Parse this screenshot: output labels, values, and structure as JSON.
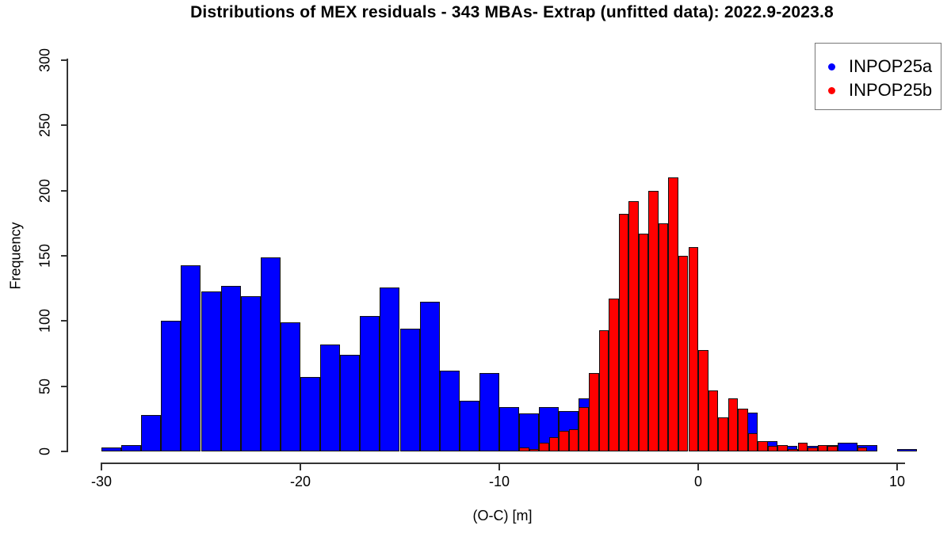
{
  "title": "Distributions of MEX residuals - 343 MBAs- Extrap (unfitted data): 2022.9-2023.8",
  "axes": {
    "x": {
      "label": "(O-C) [m]",
      "tick_values": [
        -30,
        -20,
        -10,
        0,
        10
      ],
      "tick_labels": [
        "-30",
        "-20",
        "-10",
        "0",
        "10"
      ]
    },
    "y": {
      "label": "Frequency",
      "tick_values": [
        0,
        50,
        100,
        150,
        200,
        250,
        300
      ],
      "tick_labels": [
        "0",
        "50",
        "100",
        "150",
        "200",
        "250",
        "300"
      ]
    }
  },
  "legend": {
    "position": "top-right",
    "items": [
      {
        "label": "INPOP25a",
        "color": "#0000ff"
      },
      {
        "label": "INPOP25b",
        "color": "#ff0000"
      }
    ]
  },
  "chart_data": {
    "type": "bar",
    "subtype": "overlaid-histograms",
    "title": "Distributions of MEX residuals - 343 MBAs- Extrap (unfitted data): 2022.9-2023.8",
    "xlabel": "(O-C) [m]",
    "ylabel": "Frequency",
    "xlim": [
      -31.5,
      11.2
    ],
    "ylim": [
      0,
      300
    ],
    "grid": false,
    "legend_position": "top-right",
    "series": [
      {
        "name": "INPOP25a",
        "color": "#0000ff",
        "bin_start": -30,
        "bin_width": 1,
        "counts": [
          3,
          5,
          28,
          100,
          143,
          123,
          127,
          119,
          149,
          99,
          57,
          82,
          74,
          104,
          126,
          94,
          115,
          62,
          39,
          60,
          34,
          29,
          34,
          31,
          41,
          0,
          0,
          0,
          0,
          0,
          0,
          0,
          30,
          8,
          4,
          4,
          5,
          7,
          5,
          0,
          2
        ]
      },
      {
        "name": "INPOP25b",
        "color": "#ff0000",
        "bin_start": -9,
        "bin_width": 0.5,
        "counts": [
          3,
          2,
          7,
          11,
          16,
          17,
          34,
          60,
          93,
          117,
          182,
          192,
          167,
          200,
          175,
          210,
          150,
          157,
          78,
          47,
          26,
          41,
          33,
          14,
          8,
          4,
          5,
          2,
          7,
          3,
          5,
          4,
          0,
          0,
          3
        ]
      }
    ]
  },
  "colors": {
    "background": "#ffffff",
    "axis": "#333333",
    "bar_border": "#111111",
    "legend_border": "#777777",
    "text": "#000000"
  }
}
